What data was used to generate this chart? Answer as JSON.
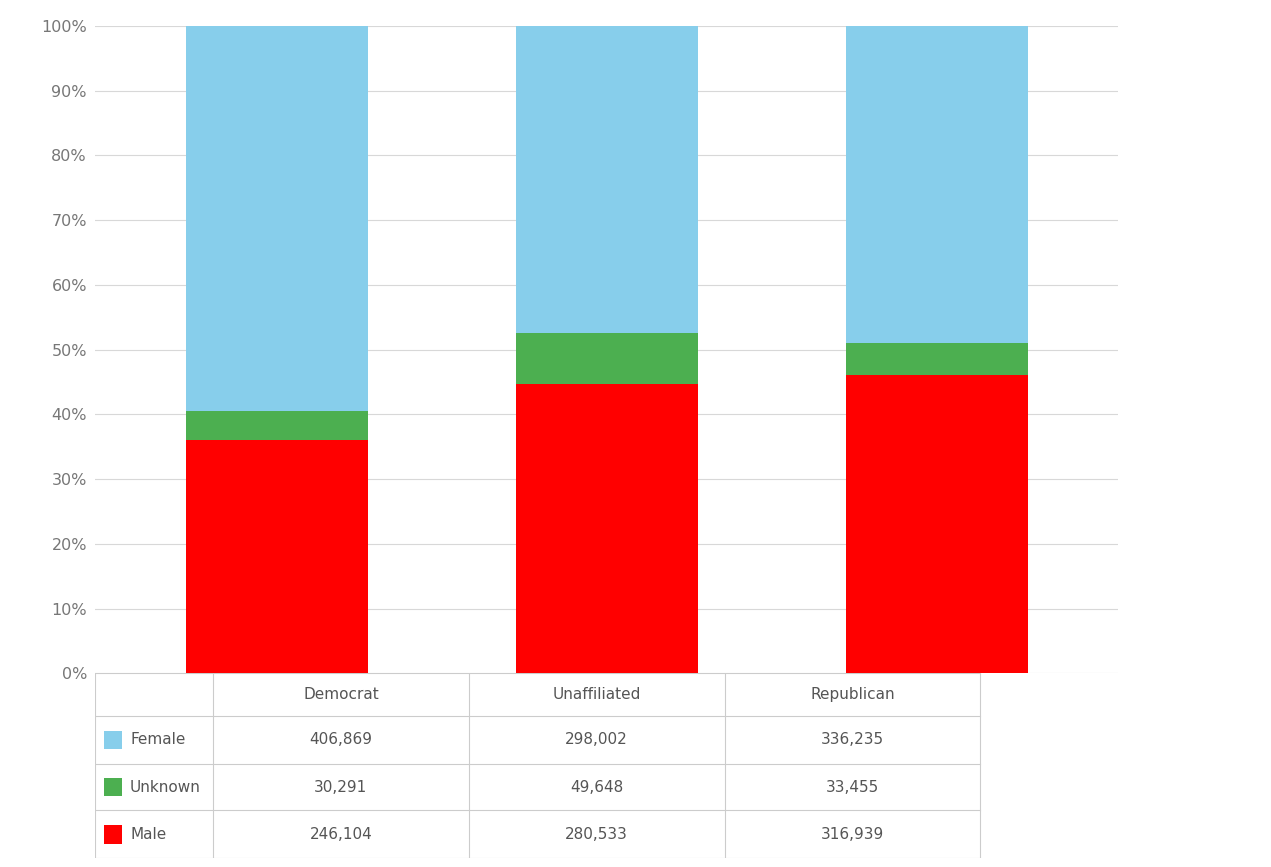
{
  "categories": [
    "Democrat",
    "Unaffiliated",
    "Republican"
  ],
  "female": [
    406869,
    298002,
    336235
  ],
  "unknown": [
    30291,
    49648,
    33455
  ],
  "male": [
    246104,
    280533,
    316939
  ],
  "female_color": "#87CEEB",
  "unknown_color": "#4CAF50",
  "male_color": "#FF0000",
  "background_color": "#FFFFFF",
  "grid_color": "#D8D8D8",
  "bar_width": 0.55,
  "ylim": [
    0,
    1.0
  ],
  "yticks": [
    0.0,
    0.1,
    0.2,
    0.3,
    0.4,
    0.5,
    0.6,
    0.7,
    0.8,
    0.9,
    1.0
  ],
  "ytick_labels": [
    "0%",
    "10%",
    "20%",
    "30%",
    "40%",
    "50%",
    "60%",
    "70%",
    "80%",
    "90%",
    "100%"
  ],
  "table_border_color": "#CCCCCC",
  "table_text_color": "#555555",
  "table_font_size": 11,
  "legend_colors": [
    "#87CEEB",
    "#4CAF50",
    "#FF0000"
  ],
  "legend_labels": [
    "Female",
    "Unknown",
    "Male"
  ],
  "female_values": [
    "406,869",
    "298,002",
    "336,235"
  ],
  "unknown_values": [
    "30,291",
    "49,648",
    "33,455"
  ],
  "male_values": [
    "246,104",
    "280,533",
    "316,939"
  ]
}
